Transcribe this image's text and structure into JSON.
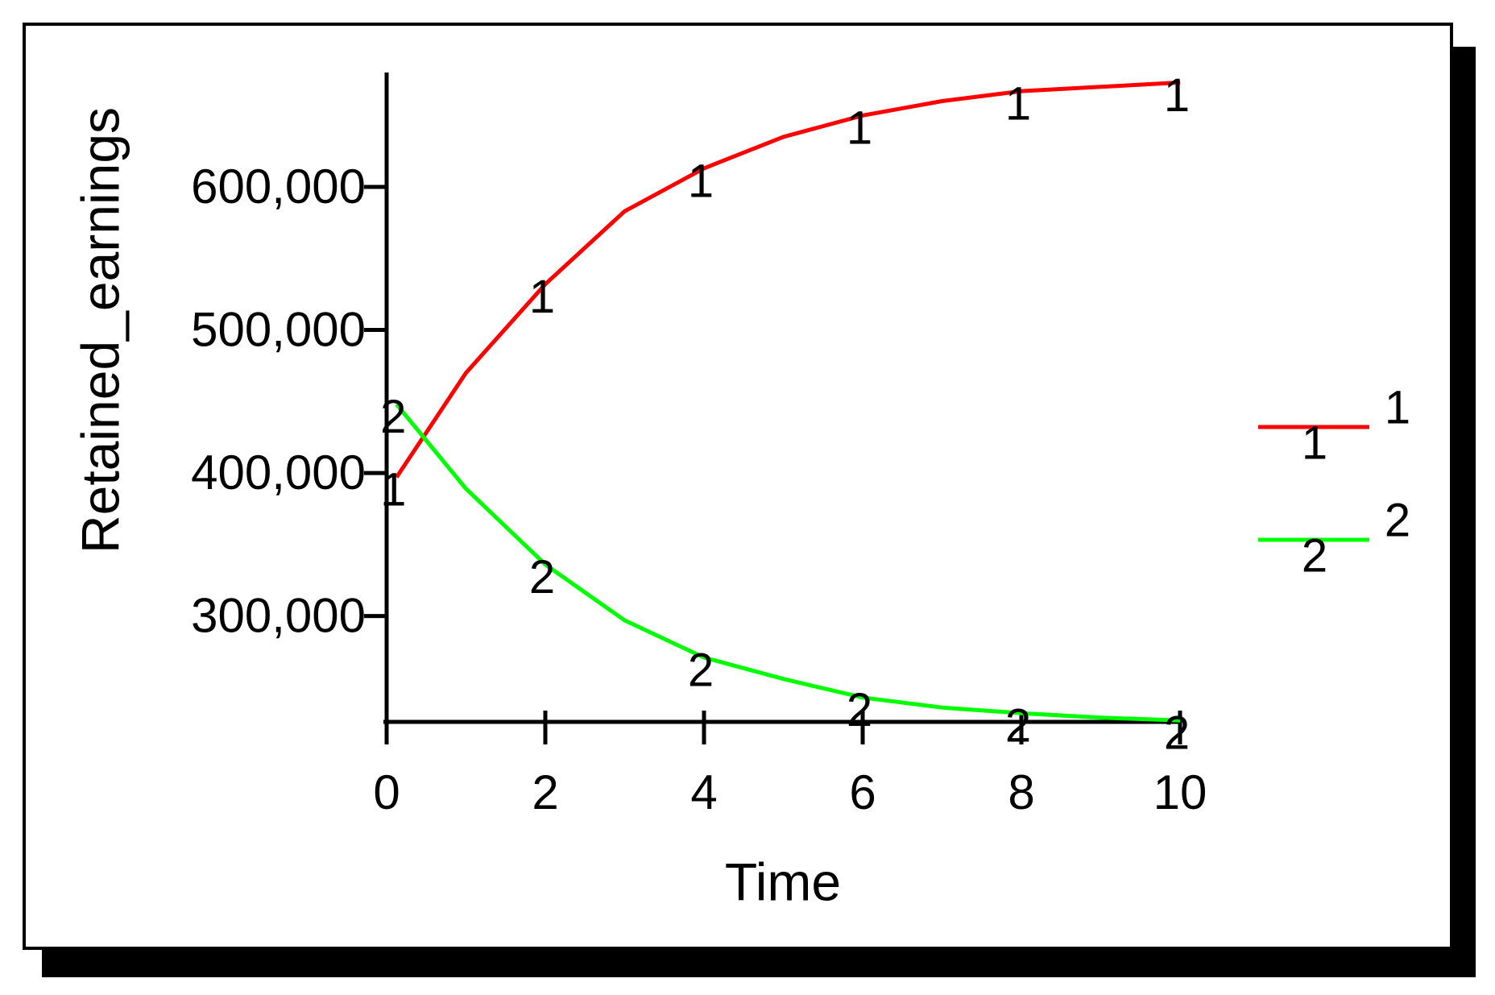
{
  "chart_data": {
    "type": "line",
    "title": "",
    "xlabel": "Time",
    "ylabel": "Retained_earnings",
    "x_ticks": [
      "0",
      "2",
      "4",
      "6",
      "8",
      "10"
    ],
    "y_ticks": [
      "300,000",
      "400,000",
      "500,000",
      "600,000"
    ],
    "xlim": [
      0,
      10
    ],
    "ylim": [
      226000,
      680000
    ],
    "legend_position": "right",
    "series": [
      {
        "name": "1",
        "marker": "1",
        "color": "#ff0000",
        "x": [
          0.125,
          1,
          2,
          3,
          4,
          5,
          6,
          7,
          8,
          9,
          10
        ],
        "y": [
          397000,
          470000,
          532000,
          583000,
          613000,
          635000,
          650000,
          660000,
          667000,
          670000,
          673000
        ]
      },
      {
        "name": "2",
        "marker": "2",
        "color": "#00ff00",
        "x": [
          0.125,
          1,
          2,
          3,
          4,
          5,
          6,
          7,
          8,
          9,
          10
        ],
        "y": [
          448000,
          389000,
          336000,
          297000,
          271000,
          256000,
          243000,
          236000,
          232000,
          229000,
          227000
        ]
      }
    ]
  }
}
